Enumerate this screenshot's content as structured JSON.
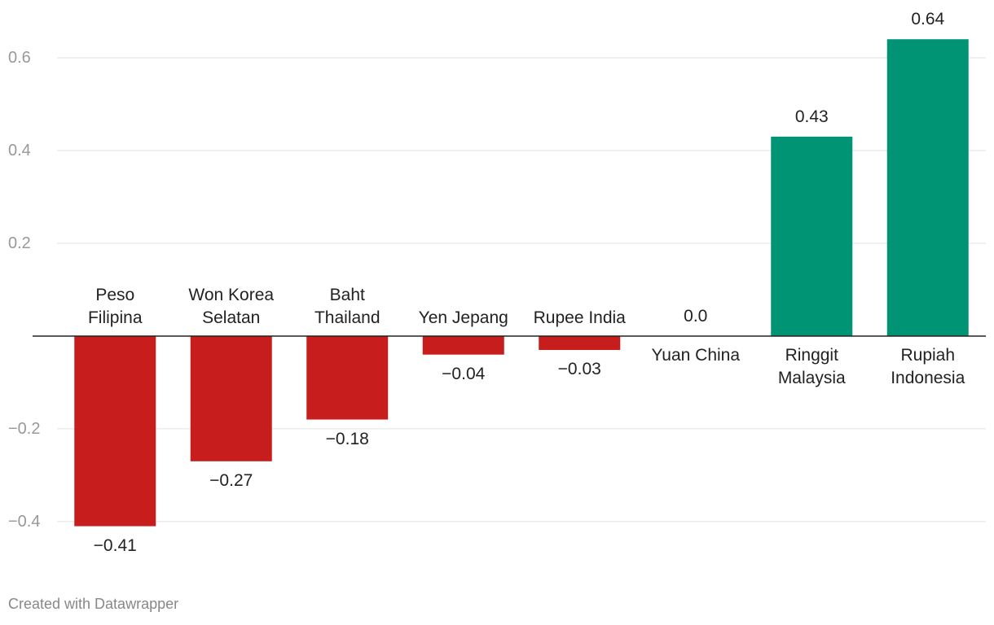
{
  "chart_data": {
    "type": "bar",
    "categories": [
      "Peso\nFilipina",
      "Won Korea\nSelatan",
      "Baht\nThailand",
      "Yen Jepang",
      "Rupee India",
      "Yuan China",
      "Ringgit\nMalaysia",
      "Rupiah\nIndonesia"
    ],
    "values": [
      -0.41,
      -0.27,
      -0.18,
      -0.04,
      -0.03,
      0,
      0.43,
      0.64
    ],
    "value_labels": [
      "−0.41",
      "−0.27",
      "−0.18",
      "−0.04",
      "−0.03",
      "0.0",
      "0.43",
      "0.64"
    ],
    "colors": [
      "#c71e1d",
      "#c71e1d",
      "#c71e1d",
      "#c71e1d",
      "#c71e1d",
      "#c71e1d",
      "#009474",
      "#009474"
    ],
    "ylim": [
      -0.43,
      0.65
    ],
    "yticks": [
      {
        "value": -0.4,
        "label": "−0.4"
      },
      {
        "value": -0.2,
        "label": "−0.2"
      },
      0.2,
      0.4,
      0.6
    ],
    "grid": true,
    "footer": "Created with Datawrapper"
  }
}
